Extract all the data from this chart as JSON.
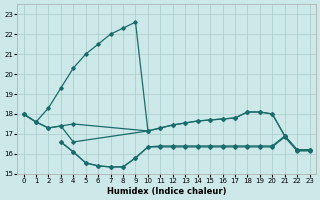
{
  "xlabel": "Humidex (Indice chaleur)",
  "bg_color": "#cce8e8",
  "grid_color": "#aacccc",
  "line_color": "#1a6b6b",
  "xlim": [
    -0.5,
    23.5
  ],
  "ylim": [
    15,
    23.5
  ],
  "xticks": [
    0,
    1,
    2,
    3,
    4,
    5,
    6,
    7,
    8,
    9,
    10,
    11,
    12,
    13,
    14,
    15,
    16,
    17,
    18,
    19,
    20,
    21,
    22,
    23
  ],
  "yticks": [
    15,
    16,
    17,
    18,
    19,
    20,
    21,
    22,
    23
  ],
  "curve1_x": [
    0,
    1,
    2,
    3,
    4,
    5,
    6,
    7,
    8,
    9,
    10
  ],
  "curve1_y": [
    18.0,
    17.6,
    18.3,
    19.3,
    20.3,
    21.0,
    21.5,
    22.0,
    22.3,
    22.6,
    17.15
  ],
  "curve2_x": [
    0,
    1,
    2,
    3,
    4,
    10,
    11,
    12,
    13,
    14,
    15,
    16,
    17,
    18,
    19,
    20,
    21,
    22,
    23
  ],
  "curve2_y": [
    18.0,
    17.6,
    17.3,
    17.4,
    17.5,
    17.15,
    17.3,
    17.45,
    17.55,
    17.65,
    17.7,
    17.75,
    17.8,
    18.1,
    18.1,
    18.0,
    16.9,
    16.2,
    16.2
  ],
  "curve3_x": [
    0,
    1,
    2,
    3,
    4,
    10,
    11,
    12,
    13,
    14,
    15,
    16,
    17,
    18,
    19,
    20,
    21,
    22,
    23
  ],
  "curve3_y": [
    18.0,
    17.6,
    17.3,
    17.4,
    16.6,
    17.15,
    17.3,
    17.45,
    17.55,
    17.65,
    17.7,
    17.75,
    17.8,
    18.1,
    18.1,
    18.0,
    16.9,
    16.2,
    16.2
  ],
  "curve4_x": [
    3,
    4,
    5,
    6,
    7,
    8,
    9,
    10,
    11,
    12,
    13,
    14,
    15,
    16,
    17,
    18,
    19,
    20,
    21,
    22,
    23
  ],
  "curve4_y": [
    16.6,
    16.1,
    15.55,
    15.4,
    15.35,
    15.35,
    15.8,
    16.35,
    16.4,
    16.4,
    16.4,
    16.4,
    16.4,
    16.4,
    16.4,
    16.4,
    16.4,
    16.4,
    16.9,
    16.2,
    16.2
  ],
  "curve5_x": [
    3,
    4,
    5,
    6,
    7,
    8,
    9,
    10,
    11,
    12,
    13,
    14,
    15,
    16,
    17,
    18,
    19,
    20,
    21,
    22,
    23
  ],
  "curve5_y": [
    16.6,
    16.1,
    15.55,
    15.4,
    15.35,
    15.35,
    15.8,
    16.35,
    16.35,
    16.35,
    16.35,
    16.35,
    16.35,
    16.35,
    16.35,
    16.35,
    16.35,
    16.35,
    16.85,
    16.15,
    16.15
  ]
}
